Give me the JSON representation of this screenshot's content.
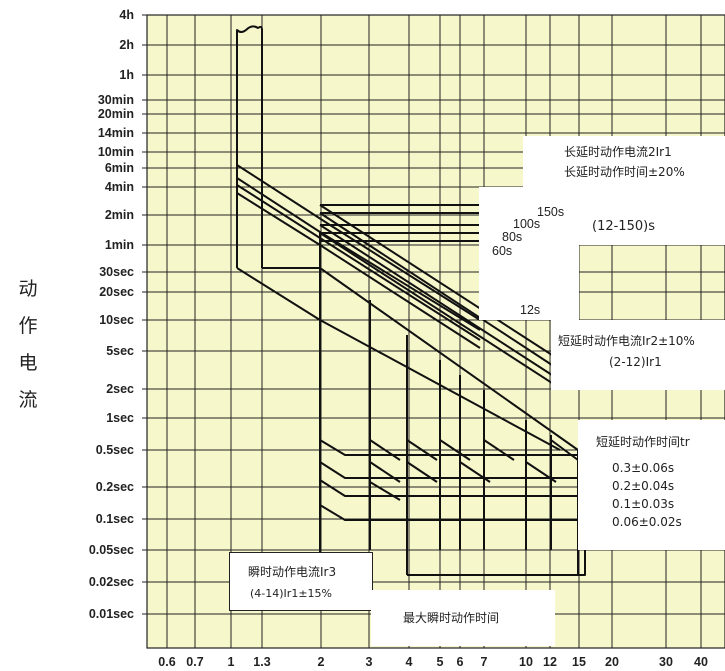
{
  "chart_data": {
    "type": "line",
    "y_axis_title_chars": [
      "动",
      "作",
      "电",
      "流"
    ],
    "y_ticks": [
      "4h",
      "2h",
      "1h",
      "30min",
      "20min",
      "14min",
      "10min",
      "6min",
      "4min",
      "2min",
      "1min",
      "30sec",
      "20sec",
      "10sec",
      "5sec",
      "2sec",
      "1sec",
      "0.5sec",
      "0.2sec",
      "0.1sec",
      "0.05sec",
      "0.02sec",
      "0.01sec"
    ],
    "y_tick_seconds": [
      14400,
      7200,
      3600,
      1800,
      1200,
      840,
      600,
      360,
      240,
      120,
      60,
      30,
      20,
      10,
      5,
      2,
      1,
      0.5,
      0.2,
      0.1,
      0.05,
      0.02,
      0.01
    ],
    "x_ticks": [
      "0.6",
      "0.7",
      "1",
      "1.3",
      "2",
      "3",
      "4",
      "5",
      "6",
      "7",
      "10",
      "12",
      "15",
      "20",
      "30",
      "40"
    ],
    "x_tick_values": [
      0.6,
      0.7,
      1,
      1.3,
      2,
      3,
      4,
      5,
      6,
      7,
      10,
      12,
      15,
      20,
      30,
      40
    ],
    "long_delay_labels": {
      "current": "长延时动作电流2Ir1",
      "time": "长延时动作时间±20%",
      "range": "(12-150)s",
      "settings": [
        "150s",
        "100s",
        "80s",
        "60s",
        "12s"
      ]
    },
    "short_delay_current": {
      "line1": "短延时动作电流Ir2±10%",
      "line2": "(2-12)Ir1"
    },
    "short_delay_time": {
      "title": "短延时动作时间tr",
      "values": [
        "0.3±0.06s",
        "0.2±0.04s",
        "0.1±0.03s",
        "0.06±0.02s"
      ]
    },
    "instant_current": {
      "line1": "瞬时动作电流Ir3",
      "line2": "(4-14)Ir1±15%"
    },
    "max_instant_time": "最大瞬时动作时间",
    "colors": {
      "plot_background": "#f7f7cc",
      "grid": "#222222",
      "curve": "#111111",
      "box": "#ffffff"
    }
  }
}
